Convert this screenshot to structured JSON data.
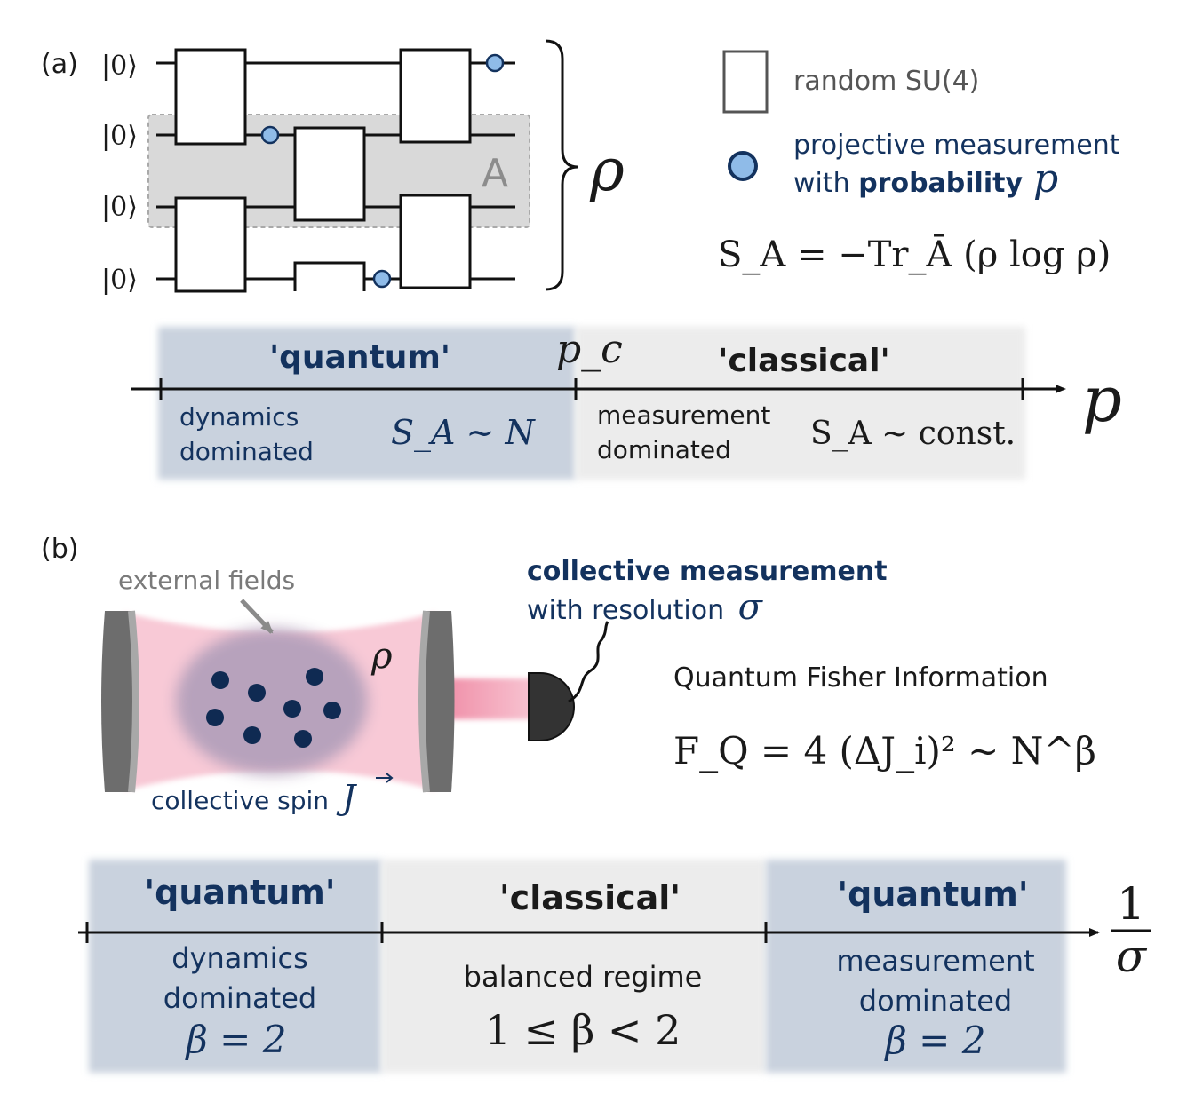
{
  "colors": {
    "navy": "#13325e",
    "quantum_region": "#c9d2de",
    "classical_region": "#ececec",
    "measurement_dot": "#8fbbe8",
    "laser_pink": "#f7b8c8",
    "atom_cloud": "#b9a6c0",
    "mirror": "#6d6d6d"
  },
  "panel_a": {
    "label": "(a)",
    "ket_labels": [
      "|0⟩",
      "|0⟩",
      "|0⟩",
      "|0⟩"
    ],
    "subsystem_label": "A",
    "rho": "ρ",
    "legend": {
      "gate_text": "random SU(4)",
      "meas_line1": "projective measurement",
      "meas_line2_prefix": "with ",
      "meas_line2_bold": "probability",
      "meas_symbol": "p"
    },
    "entropy_formula": "S_A = −Tr_Ā (ρ log ρ)",
    "axis": {
      "variable": "p",
      "critical_label": "p_c",
      "quantum": {
        "title": "'quantum'",
        "line1": "dynamics",
        "line2": "dominated",
        "scaling": "S_A ∼ N"
      },
      "classical": {
        "title": "'classical'",
        "line1": "measurement",
        "line2": "dominated",
        "scaling": "S_A ∼ const."
      }
    }
  },
  "panel_b": {
    "label": "(b)",
    "external_fields": "external fields",
    "rho": "ρ",
    "collective_spin": "collective spin",
    "spin_symbol": "J",
    "measurement_title": "collective measurement",
    "measurement_sub": "with resolution",
    "sigma": "σ",
    "qfi_title": "Quantum Fisher Information",
    "qfi_formula": "F_Q = 4 (ΔJ_i)² ∼ N^β",
    "axis": {
      "variable_num": "1",
      "variable_den": "σ",
      "left": {
        "title": "'quantum'",
        "line1": "dynamics",
        "line2": "dominated",
        "beta": "β = 2"
      },
      "middle": {
        "title": "'classical'",
        "line1": "balanced regime",
        "beta": "1 ≤ β < 2"
      },
      "right": {
        "title": "'quantum'",
        "line1": "measurement",
        "line2": "dominated",
        "beta": "β = 2"
      }
    }
  }
}
